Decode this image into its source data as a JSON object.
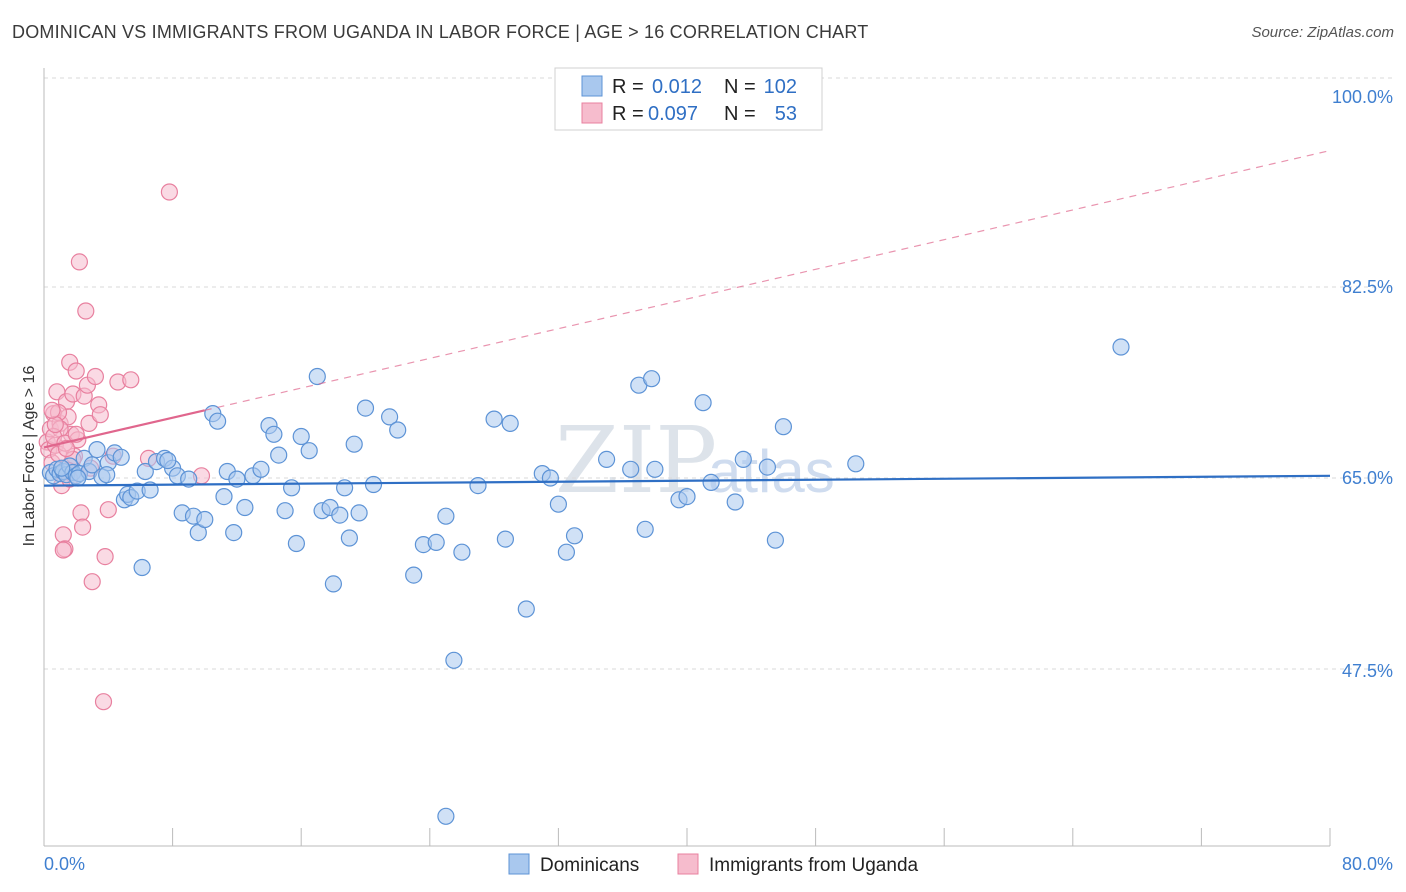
{
  "header": {
    "title": "DOMINICAN VS IMMIGRANTS FROM UGANDA IN LABOR FORCE | AGE > 16 CORRELATION CHART",
    "source": "Source: ZipAtlas.com"
  },
  "watermark": {
    "zip": "ZIP",
    "atlas": "atlas"
  },
  "colors": {
    "blue_fill": "#a9c8ee",
    "blue_stroke": "#5d93d6",
    "blue_line": "#2f6fc4",
    "pink_fill": "#f6bccd",
    "pink_stroke": "#e8809f",
    "pink_line": "#e0668d",
    "grid": "#dadada",
    "tick_text": "#3f7fd0"
  },
  "legend": {
    "rows": [
      {
        "r_label": "R =",
        "r_value": "0.012",
        "n_label": "N =",
        "n_value": "102"
      },
      {
        "r_label": "R =",
        "r_value": "0.097",
        "n_label": "N =",
        "n_value": "53"
      }
    ]
  },
  "chart_data": {
    "type": "scatter",
    "title": "DOMINICAN VS IMMIGRANTS FROM UGANDA IN LABOR FORCE | AGE > 16 CORRELATION CHART",
    "xlabel": "",
    "ylabel": "In Labor Force | Age > 16",
    "xlim": [
      0,
      80
    ],
    "ylim": [
      30,
      102
    ],
    "x_tick_labels": [
      "0.0%",
      "80.0%"
    ],
    "y_ticks": [
      47.5,
      65.0,
      82.5,
      100.0
    ],
    "y_tick_labels": [
      "47.5%",
      "65.0%",
      "82.5%",
      "100.0%"
    ],
    "grid": true,
    "legend_position": "top-center",
    "series": [
      {
        "name": "Dominicans",
        "color": "#a9c8ee",
        "trend": {
          "x": [
            0,
            80
          ],
          "y": [
            64.3,
            65.2
          ],
          "style": "solid"
        },
        "points": [
          [
            0.4,
            65.5
          ],
          [
            0.6,
            65.2
          ],
          [
            0.8,
            65.8
          ],
          [
            1.0,
            65.4
          ],
          [
            1.2,
            65.6
          ],
          [
            1.4,
            65.3
          ],
          [
            1.6,
            66.1
          ],
          [
            1.8,
            65.5
          ],
          [
            2.0,
            65.2
          ],
          [
            2.2,
            65.4
          ],
          [
            2.5,
            66.8
          ],
          [
            2.8,
            65.6
          ],
          [
            3.0,
            66.2
          ],
          [
            3.3,
            67.6
          ],
          [
            3.6,
            65.1
          ],
          [
            4.0,
            66.4
          ],
          [
            4.4,
            67.3
          ],
          [
            4.8,
            66.9
          ],
          [
            5.0,
            63.0
          ],
          [
            5.2,
            63.5
          ],
          [
            5.4,
            63.2
          ],
          [
            5.8,
            63.8
          ],
          [
            6.1,
            56.8
          ],
          [
            6.3,
            65.6
          ],
          [
            6.6,
            63.9
          ],
          [
            7.0,
            66.5
          ],
          [
            7.5,
            66.8
          ],
          [
            8.0,
            65.9
          ],
          [
            8.3,
            65.2
          ],
          [
            8.6,
            61.8
          ],
          [
            9.0,
            64.9
          ],
          [
            9.3,
            61.5
          ],
          [
            9.6,
            60.0
          ],
          [
            10.0,
            61.2
          ],
          [
            10.5,
            70.9
          ],
          [
            10.8,
            70.2
          ],
          [
            11.2,
            63.3
          ],
          [
            11.4,
            65.6
          ],
          [
            11.8,
            60.0
          ],
          [
            12.0,
            64.9
          ],
          [
            12.5,
            62.3
          ],
          [
            13.0,
            65.2
          ],
          [
            13.5,
            65.8
          ],
          [
            14.0,
            69.8
          ],
          [
            14.3,
            69.0
          ],
          [
            14.6,
            67.1
          ],
          [
            15.0,
            62.0
          ],
          [
            15.4,
            64.1
          ],
          [
            15.7,
            59.0
          ],
          [
            16.0,
            68.8
          ],
          [
            16.5,
            67.5
          ],
          [
            17.0,
            74.3
          ],
          [
            17.3,
            62.0
          ],
          [
            17.8,
            62.3
          ],
          [
            18.0,
            55.3
          ],
          [
            18.4,
            61.6
          ],
          [
            18.7,
            64.1
          ],
          [
            19.0,
            59.5
          ],
          [
            19.3,
            68.1
          ],
          [
            19.6,
            61.8
          ],
          [
            20.0,
            71.4
          ],
          [
            20.5,
            64.4
          ],
          [
            21.5,
            70.6
          ],
          [
            22.0,
            69.4
          ],
          [
            23.0,
            56.1
          ],
          [
            23.6,
            58.9
          ],
          [
            24.4,
            59.1
          ],
          [
            25.0,
            61.5
          ],
          [
            25.5,
            48.3
          ],
          [
            26.0,
            58.2
          ],
          [
            27.0,
            64.3
          ],
          [
            28.0,
            70.4
          ],
          [
            28.7,
            59.4
          ],
          [
            29.0,
            70.0
          ],
          [
            30.0,
            53.0
          ],
          [
            31.0,
            65.4
          ],
          [
            31.5,
            65.0
          ],
          [
            32.0,
            62.6
          ],
          [
            32.5,
            58.2
          ],
          [
            33.0,
            59.7
          ],
          [
            35.0,
            66.7
          ],
          [
            36.5,
            65.8
          ],
          [
            37.0,
            73.5
          ],
          [
            37.4,
            60.3
          ],
          [
            37.8,
            74.1
          ],
          [
            38.0,
            65.8
          ],
          [
            39.5,
            63.0
          ],
          [
            40.0,
            63.3
          ],
          [
            41.0,
            71.9
          ],
          [
            41.5,
            64.6
          ],
          [
            43.0,
            62.8
          ],
          [
            43.5,
            66.7
          ],
          [
            45.0,
            66.0
          ],
          [
            45.5,
            59.3
          ],
          [
            46.0,
            69.7
          ],
          [
            50.5,
            66.3
          ],
          [
            67.0,
            77.0
          ],
          [
            25.0,
            34.0
          ],
          [
            7.7,
            66.6
          ],
          [
            2.1,
            65.0
          ],
          [
            3.9,
            65.3
          ],
          [
            1.1,
            65.9
          ]
        ]
      },
      {
        "name": "Immigrants from Uganda",
        "color": "#f6bccd",
        "trend": {
          "x": [
            0,
            10
          ],
          "y": [
            67.8,
            71.2
          ],
          "style": "solid",
          "extended": {
            "x": [
              10,
              80
            ],
            "y": [
              71.2,
              95.0
            ],
            "style": "dashed"
          }
        },
        "points": [
          [
            0.2,
            68.3
          ],
          [
            0.3,
            67.6
          ],
          [
            0.4,
            69.5
          ],
          [
            0.5,
            66.4
          ],
          [
            0.6,
            70.9
          ],
          [
            0.7,
            68.0
          ],
          [
            0.8,
            72.9
          ],
          [
            0.9,
            67.2
          ],
          [
            1.0,
            70.0
          ],
          [
            1.1,
            64.3
          ],
          [
            1.2,
            59.8
          ],
          [
            1.3,
            58.5
          ],
          [
            1.4,
            72.0
          ],
          [
            1.5,
            70.6
          ],
          [
            1.6,
            75.6
          ],
          [
            1.7,
            69.0
          ],
          [
            1.8,
            72.7
          ],
          [
            1.9,
            67.0
          ],
          [
            2.0,
            74.8
          ],
          [
            2.1,
            68.5
          ],
          [
            2.2,
            84.8
          ],
          [
            2.3,
            61.8
          ],
          [
            2.5,
            72.5
          ],
          [
            2.7,
            73.5
          ],
          [
            2.8,
            70.0
          ],
          [
            3.0,
            55.5
          ],
          [
            3.2,
            74.3
          ],
          [
            3.4,
            71.7
          ],
          [
            3.5,
            70.8
          ],
          [
            3.7,
            44.5
          ],
          [
            3.8,
            57.8
          ],
          [
            4.0,
            62.1
          ],
          [
            4.3,
            67.0
          ],
          [
            4.6,
            73.8
          ],
          [
            5.4,
            74.0
          ],
          [
            6.5,
            66.8
          ],
          [
            7.8,
            91.2
          ],
          [
            9.8,
            65.2
          ],
          [
            1.0,
            69.5
          ],
          [
            0.6,
            68.8
          ],
          [
            1.3,
            68.2
          ],
          [
            1.8,
            66.7
          ],
          [
            0.9,
            71.0
          ],
          [
            2.6,
            80.3
          ],
          [
            1.5,
            65.7
          ],
          [
            1.2,
            58.4
          ],
          [
            2.4,
            60.5
          ],
          [
            0.7,
            69.9
          ],
          [
            2.0,
            69.0
          ],
          [
            1.4,
            67.7
          ],
          [
            0.5,
            71.2
          ],
          [
            2.9,
            65.9
          ],
          [
            1.6,
            64.9
          ]
        ]
      }
    ]
  },
  "bottom_legend": {
    "items": [
      {
        "label": "Dominicans"
      },
      {
        "label": "Immigrants from Uganda"
      }
    ]
  }
}
